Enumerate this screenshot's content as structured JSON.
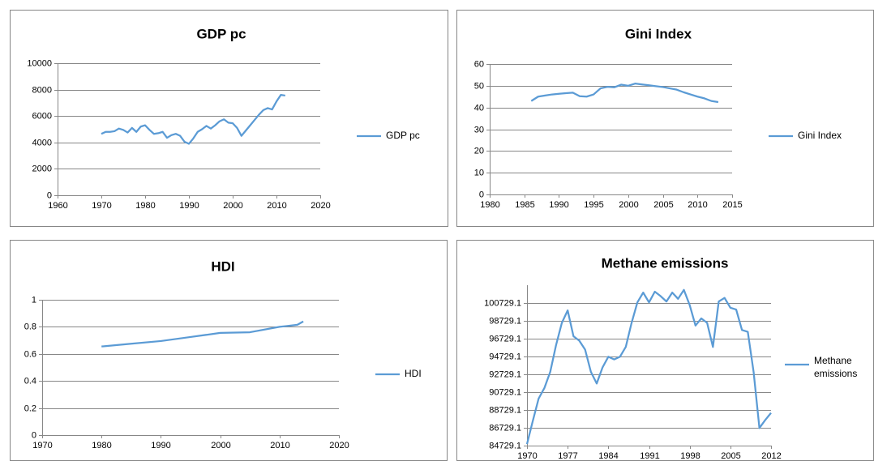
{
  "chart_data": [
    {
      "type": "line",
      "title": "GDP pc",
      "x": [
        1970,
        1971,
        1972,
        1973,
        1974,
        1975,
        1976,
        1977,
        1978,
        1979,
        1980,
        1981,
        1982,
        1983,
        1984,
        1985,
        1986,
        1987,
        1988,
        1989,
        1990,
        1991,
        1992,
        1993,
        1994,
        1995,
        1996,
        1997,
        1998,
        1999,
        2000,
        2001,
        2002,
        2003,
        2004,
        2005,
        2006,
        2007,
        2008,
        2009,
        2010,
        2011,
        2012
      ],
      "series": [
        {
          "name": "GDP pc",
          "color": "#5b9bd5",
          "values": [
            4650,
            4800,
            4800,
            4850,
            5050,
            4950,
            4750,
            5100,
            4800,
            5200,
            5300,
            4950,
            4650,
            4700,
            4800,
            4350,
            4550,
            4650,
            4500,
            4050,
            3900,
            4300,
            4800,
            5000,
            5250,
            5050,
            5300,
            5600,
            5750,
            5500,
            5450,
            5100,
            4500,
            4900,
            5300,
            5700,
            6100,
            6450,
            6600,
            6500,
            7100,
            7600,
            7550
          ]
        }
      ],
      "xlim": [
        1960,
        2020
      ],
      "xticks": [
        1960,
        1970,
        1980,
        1990,
        2000,
        2010,
        2020
      ],
      "ylim": [
        0,
        10000
      ],
      "yticks": [
        0,
        2000,
        4000,
        6000,
        8000,
        10000
      ],
      "grid": true,
      "legend": "right"
    },
    {
      "type": "line",
      "title": "Gini Index",
      "x": [
        1986,
        1987,
        1988,
        1989,
        1990,
        1991,
        1992,
        1993,
        1994,
        1995,
        1996,
        1997,
        1998,
        1999,
        2000,
        2001,
        2002,
        2003,
        2004,
        2005,
        2006,
        2007,
        2008,
        2009,
        2010,
        2011,
        2012,
        2013
      ],
      "series": [
        {
          "name": "Gini Index",
          "color": "#5b9bd5",
          "values": [
            43,
            45,
            45.5,
            46,
            46.3,
            46.6,
            46.8,
            45.2,
            45,
            46,
            48.8,
            49.5,
            49.3,
            50.5,
            50,
            51,
            50.6,
            50.2,
            49.8,
            49.4,
            48.8,
            48.2,
            47,
            46,
            45,
            44.2,
            43,
            42.5
          ]
        }
      ],
      "xlim": [
        1980,
        2015
      ],
      "xticks": [
        1980,
        1985,
        1990,
        1995,
        2000,
        2005,
        2010,
        2015
      ],
      "ylim": [
        0,
        60
      ],
      "yticks": [
        0,
        10,
        20,
        30,
        40,
        50,
        60
      ],
      "grid": true,
      "legend": "right"
    },
    {
      "type": "line",
      "title": "HDI",
      "x": [
        1980,
        1985,
        1990,
        1995,
        2000,
        2005,
        2010,
        2011,
        2012,
        2013,
        2014
      ],
      "series": [
        {
          "name": "HDI",
          "color": "#5b9bd5",
          "values": [
            0.655,
            0.675,
            0.695,
            0.725,
            0.755,
            0.76,
            0.8,
            0.805,
            0.81,
            0.815,
            0.84
          ]
        }
      ],
      "xlim": [
        1970,
        2020
      ],
      "xticks": [
        1970,
        1980,
        1990,
        2000,
        2010,
        2020
      ],
      "ylim": [
        0,
        1
      ],
      "yticks": [
        0,
        0.2,
        0.4,
        0.6,
        0.8,
        1
      ],
      "grid": true,
      "legend": "right"
    },
    {
      "type": "line",
      "title": "Methane emissions",
      "x": [
        1970,
        1971,
        1972,
        1973,
        1974,
        1975,
        1976,
        1977,
        1978,
        1979,
        1980,
        1981,
        1982,
        1983,
        1984,
        1985,
        1986,
        1987,
        1988,
        1989,
        1990,
        1991,
        1992,
        1993,
        1994,
        1995,
        1996,
        1997,
        1998,
        1999,
        2000,
        2001,
        2002,
        2003,
        2004,
        2005,
        2006,
        2007,
        2008,
        2009,
        2010,
        2011,
        2012
      ],
      "series": [
        {
          "name": "Methane emissions",
          "color": "#5b9bd5",
          "values": [
            84900,
            87500,
            90000,
            91200,
            93000,
            96000,
            98500,
            99900,
            97000,
            96500,
            95500,
            93000,
            91700,
            93500,
            94700,
            94400,
            94700,
            95800,
            98500,
            100800,
            101900,
            100800,
            102000,
            101500,
            100900,
            101900,
            101200,
            102200,
            100500,
            98200,
            99000,
            98500,
            95800,
            100900,
            101300,
            100200,
            100000,
            97700,
            97500,
            93000,
            86700,
            87600,
            88400
          ]
        }
      ],
      "xlim": [
        1970,
        2012
      ],
      "xticks": [
        1970,
        1977,
        1984,
        1991,
        1998,
        2005,
        2012
      ],
      "ylim": [
        84729.1,
        102729.1
      ],
      "yticks": [
        84729.1,
        86729.1,
        88729.1,
        90729.1,
        92729.1,
        94729.1,
        96729.1,
        98729.1,
        100729.1
      ],
      "grid": true,
      "legend": "right"
    }
  ]
}
